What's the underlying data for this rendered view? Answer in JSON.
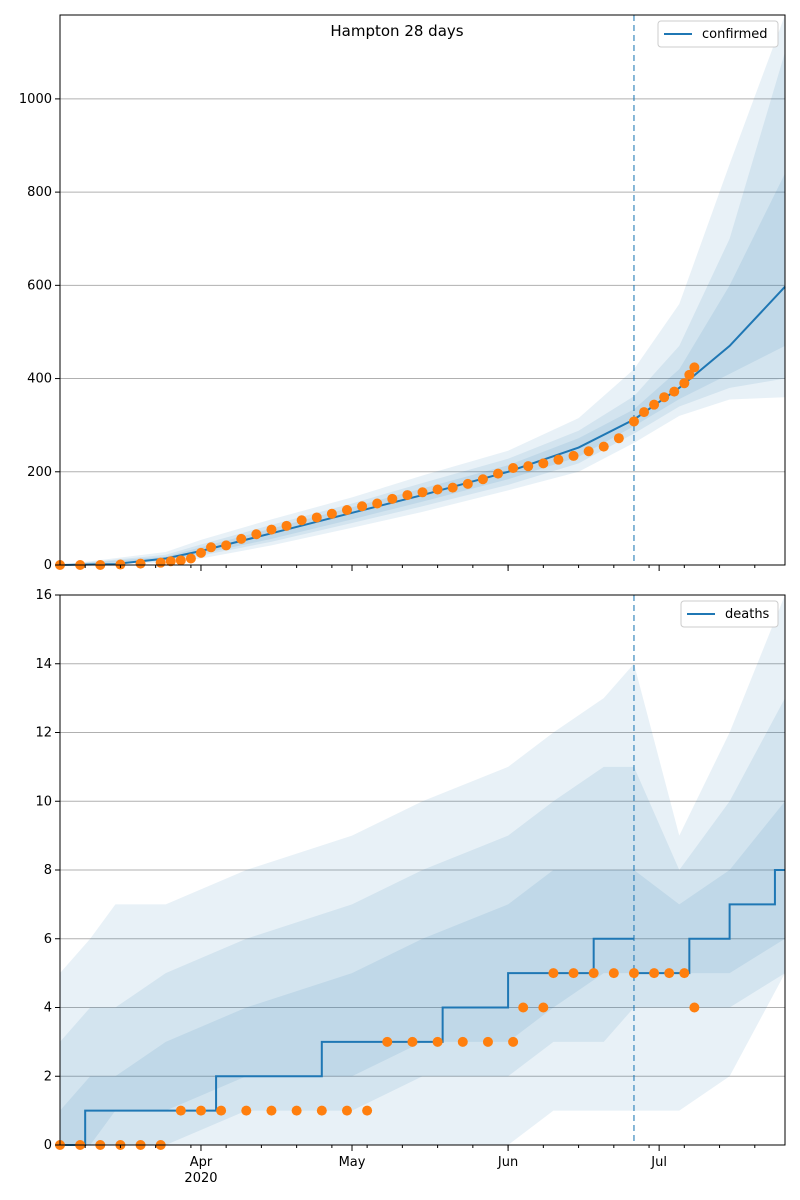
{
  "chart_data": [
    {
      "type": "line",
      "title": "Hampton 28 days",
      "legend": {
        "label": "confirmed",
        "placement": "top-right"
      },
      "xlim": [
        "2020-03-04",
        "2020-07-26"
      ],
      "ylim": [
        0,
        1180
      ],
      "yticks": [
        0,
        200,
        400,
        600,
        800,
        1000
      ],
      "grid": "horizontal",
      "vline_date": "2020-06-26",
      "colors": {
        "line": "#1f77b4",
        "points": "#ff7f0e",
        "band": "#1f77b4"
      },
      "median": {
        "x": [
          "2020-03-04",
          "2020-03-15",
          "2020-03-25",
          "2020-04-01",
          "2020-04-15",
          "2020-05-01",
          "2020-05-15",
          "2020-06-01",
          "2020-06-15",
          "2020-06-26",
          "2020-07-05",
          "2020-07-15",
          "2020-07-26"
        ],
        "y": [
          0,
          2,
          14,
          30,
          68,
          112,
          150,
          200,
          252,
          312,
          380,
          470,
          597
        ]
      },
      "bands": [
        {
          "x": [
            "2020-03-04",
            "2020-03-25",
            "2020-04-01",
            "2020-04-15",
            "2020-05-01",
            "2020-05-15",
            "2020-06-01",
            "2020-06-15",
            "2020-06-26",
            "2020-07-05",
            "2020-07-15",
            "2020-07-26"
          ],
          "lower": [
            0,
            5,
            14,
            42,
            80,
            114,
            160,
            200,
            262,
            320,
            355,
            360
          ],
          "upper": [
            0,
            28,
            54,
            98,
            145,
            192,
            245,
            315,
            420,
            560,
            860,
            1180
          ]
        },
        {
          "x": [
            "2020-03-04",
            "2020-03-25",
            "2020-04-01",
            "2020-04-15",
            "2020-05-01",
            "2020-05-15",
            "2020-06-01",
            "2020-06-15",
            "2020-06-26",
            "2020-07-05",
            "2020-07-15",
            "2020-07-26"
          ],
          "lower": [
            0,
            8,
            20,
            50,
            90,
            126,
            172,
            218,
            282,
            340,
            380,
            400
          ],
          "upper": [
            0,
            22,
            44,
            86,
            132,
            176,
            228,
            288,
            362,
            470,
            700,
            1100
          ]
        },
        {
          "x": [
            "2020-03-04",
            "2020-03-25",
            "2020-04-01",
            "2020-04-15",
            "2020-05-01",
            "2020-05-15",
            "2020-06-01",
            "2020-06-15",
            "2020-06-26",
            "2020-07-05",
            "2020-07-15",
            "2020-07-26"
          ],
          "lower": [
            0,
            10,
            24,
            56,
            98,
            136,
            184,
            232,
            298,
            356,
            410,
            470
          ],
          "upper": [
            0,
            18,
            38,
            78,
            124,
            164,
            214,
            272,
            334,
            420,
            600,
            840
          ]
        }
      ],
      "observed": {
        "x": [
          "2020-03-04",
          "2020-03-08",
          "2020-03-12",
          "2020-03-16",
          "2020-03-20",
          "2020-03-24",
          "2020-03-26",
          "2020-03-28",
          "2020-03-30",
          "2020-04-01",
          "2020-04-03",
          "2020-04-06",
          "2020-04-09",
          "2020-04-12",
          "2020-04-15",
          "2020-04-18",
          "2020-04-21",
          "2020-04-24",
          "2020-04-27",
          "2020-04-30",
          "2020-05-03",
          "2020-05-06",
          "2020-05-09",
          "2020-05-12",
          "2020-05-15",
          "2020-05-18",
          "2020-05-21",
          "2020-05-24",
          "2020-05-27",
          "2020-05-30",
          "2020-06-02",
          "2020-06-05",
          "2020-06-08",
          "2020-06-11",
          "2020-06-14",
          "2020-06-17",
          "2020-06-20",
          "2020-06-23",
          "2020-06-26",
          "2020-06-28",
          "2020-06-30",
          "2020-07-02",
          "2020-07-04",
          "2020-07-06",
          "2020-07-07",
          "2020-07-08"
        ],
        "y": [
          0,
          0,
          0,
          1,
          3,
          5,
          8,
          10,
          14,
          26,
          38,
          42,
          56,
          66,
          76,
          84,
          96,
          102,
          110,
          118,
          126,
          132,
          142,
          150,
          156,
          162,
          166,
          174,
          184,
          196,
          208,
          212,
          218,
          226,
          234,
          244,
          254,
          272,
          308,
          328,
          344,
          360,
          372,
          390,
          408,
          424
        ]
      }
    },
    {
      "type": "line",
      "title": "",
      "legend": {
        "label": "deaths",
        "placement": "top-right"
      },
      "xlim": [
        "2020-03-04",
        "2020-07-26"
      ],
      "ylim": [
        0,
        16
      ],
      "yticks": [
        0,
        2,
        4,
        6,
        8,
        10,
        12,
        14,
        16
      ],
      "grid": "horizontal",
      "vline_date": "2020-06-26",
      "xticks": [
        "Apr",
        "May",
        "Jun",
        "Jul"
      ],
      "xtick_dates": [
        "2020-04-01",
        "2020-05-01",
        "2020-06-01",
        "2020-07-01"
      ],
      "xtick_sublabel": "2020",
      "colors": {
        "line": "#1f77b4",
        "points": "#ff7f0e",
        "band": "#1f77b4"
      },
      "median_step": {
        "x": [
          "2020-03-04",
          "2020-03-09",
          "2020-04-04",
          "2020-04-25",
          "2020-05-19",
          "2020-06-01",
          "2020-06-18",
          "2020-06-26"
        ],
        "y": [
          0,
          1,
          2,
          3,
          4,
          5,
          6,
          6
        ]
      },
      "median_step_after": {
        "x": [
          "2020-06-26",
          "2020-07-07",
          "2020-07-15",
          "2020-07-24",
          "2020-07-26"
        ],
        "y": [
          5,
          6,
          7,
          8,
          8
        ]
      },
      "bands": [
        {
          "x": [
            "2020-03-04",
            "2020-03-10",
            "2020-03-15",
            "2020-03-25",
            "2020-04-10",
            "2020-05-01",
            "2020-05-15",
            "2020-06-01",
            "2020-06-10",
            "2020-06-20",
            "2020-06-26",
            "2020-07-05",
            "2020-07-15",
            "2020-07-26"
          ],
          "lower": [
            0,
            0,
            0,
            0,
            0,
            0,
            0,
            0,
            1,
            1,
            1,
            1,
            2,
            5
          ],
          "upper": [
            5,
            6,
            7,
            7,
            8,
            9,
            10,
            11,
            12,
            13,
            14,
            9,
            12,
            16
          ]
        },
        {
          "x": [
            "2020-03-04",
            "2020-03-10",
            "2020-03-15",
            "2020-03-25",
            "2020-04-10",
            "2020-05-01",
            "2020-05-15",
            "2020-06-01",
            "2020-06-10",
            "2020-06-20",
            "2020-06-26",
            "2020-07-05",
            "2020-07-15",
            "2020-07-26"
          ],
          "lower": [
            0,
            0,
            0,
            0,
            1,
            1,
            2,
            2,
            3,
            3,
            4,
            4,
            4,
            5
          ],
          "upper": [
            3,
            4,
            4,
            5,
            6,
            7,
            8,
            9,
            10,
            11,
            11,
            8,
            10,
            13
          ]
        },
        {
          "x": [
            "2020-03-04",
            "2020-03-10",
            "2020-03-15",
            "2020-03-25",
            "2020-04-10",
            "2020-05-01",
            "2020-05-15",
            "2020-06-01",
            "2020-06-10",
            "2020-06-20",
            "2020-06-26",
            "2020-07-05",
            "2020-07-15",
            "2020-07-26"
          ],
          "lower": [
            0,
            0,
            1,
            1,
            2,
            2,
            3,
            3,
            4,
            5,
            5,
            5,
            5,
            6
          ],
          "upper": [
            1,
            2,
            2,
            3,
            4,
            5,
            6,
            7,
            8,
            8,
            8,
            7,
            8,
            10
          ]
        }
      ],
      "observed": {
        "x": [
          "2020-03-04",
          "2020-03-08",
          "2020-03-12",
          "2020-03-16",
          "2020-03-20",
          "2020-03-24",
          "2020-03-28",
          "2020-04-01",
          "2020-04-05",
          "2020-04-10",
          "2020-04-15",
          "2020-04-20",
          "2020-04-25",
          "2020-04-30",
          "2020-05-04",
          "2020-05-08",
          "2020-05-13",
          "2020-05-18",
          "2020-05-23",
          "2020-05-28",
          "2020-06-02",
          "2020-06-04",
          "2020-06-08",
          "2020-06-10",
          "2020-06-14",
          "2020-06-18",
          "2020-06-22",
          "2020-06-26",
          "2020-06-30",
          "2020-07-03",
          "2020-07-06",
          "2020-07-08"
        ],
        "y": [
          0,
          0,
          0,
          0,
          0,
          0,
          1,
          1,
          1,
          1,
          1,
          1,
          1,
          1,
          1,
          3,
          3,
          3,
          3,
          3,
          3,
          4,
          4,
          5,
          5,
          5,
          5,
          5,
          5,
          5,
          5,
          4
        ]
      }
    }
  ]
}
